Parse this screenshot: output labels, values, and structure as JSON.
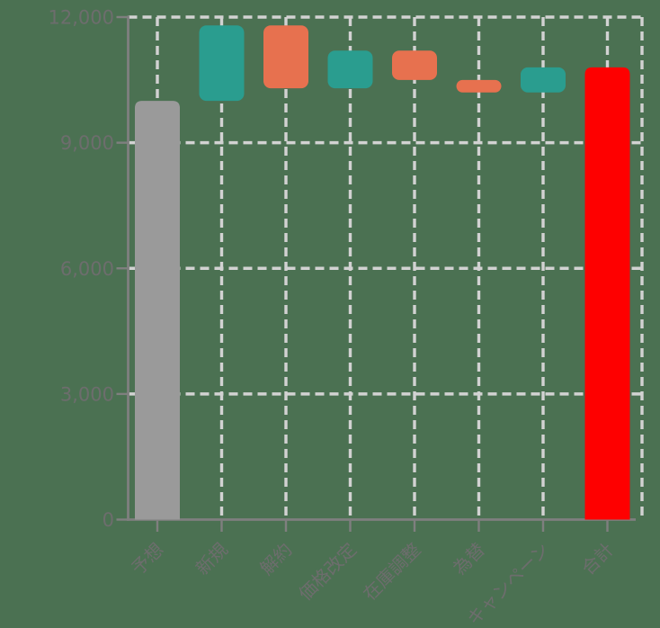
{
  "chart_data": {
    "type": "bar",
    "subtype": "waterfall",
    "title": "",
    "xlabel": "",
    "ylabel": "",
    "categories": [
      "予想",
      "新規",
      "解約",
      "価格改定",
      "在庫調整",
      "為替",
      "キャンペーン",
      "合計"
    ],
    "bars": [
      {
        "label": "予想",
        "start": 0,
        "end": 10000,
        "delta": 10000,
        "role": "base"
      },
      {
        "label": "新規",
        "start": 10000,
        "end": 11800,
        "delta": 1800,
        "role": "increase"
      },
      {
        "label": "解約",
        "start": 11800,
        "end": 10300,
        "delta": -1500,
        "role": "decrease"
      },
      {
        "label": "価格改定",
        "start": 10300,
        "end": 11200,
        "delta": 900,
        "role": "increase"
      },
      {
        "label": "在庫調整",
        "start": 11200,
        "end": 10500,
        "delta": -700,
        "role": "decrease"
      },
      {
        "label": "為替",
        "start": 10500,
        "end": 10200,
        "delta": -300,
        "role": "decrease"
      },
      {
        "label": "キャンペーン",
        "start": 10200,
        "end": 10800,
        "delta": 600,
        "role": "increase"
      },
      {
        "label": "合計",
        "start": 0,
        "end": 10800,
        "delta": 10800,
        "role": "total"
      }
    ],
    "y_axis": {
      "min": 0,
      "max": 12000,
      "ticks": [
        {
          "value": 0,
          "label": "0"
        },
        {
          "value": 3000,
          "label": "3,000"
        },
        {
          "value": 6000,
          "label": "6,000"
        },
        {
          "value": 9000,
          "label": "9,000"
        },
        {
          "value": 12000,
          "label": "12,000"
        }
      ]
    },
    "grid": {
      "horizontal": true,
      "vertical": true,
      "style": "dashed",
      "right_edge_line": true
    },
    "legend": "none",
    "colors": {
      "background": "#4b7152",
      "base": "#9a9a9a",
      "increase": "#2a9d8f",
      "decrease": "#e7714f",
      "total": "#fe0000",
      "gridline": "#d2d2d2",
      "axis": "#7f7f7f",
      "tick_label": "#6d6d6d"
    }
  }
}
